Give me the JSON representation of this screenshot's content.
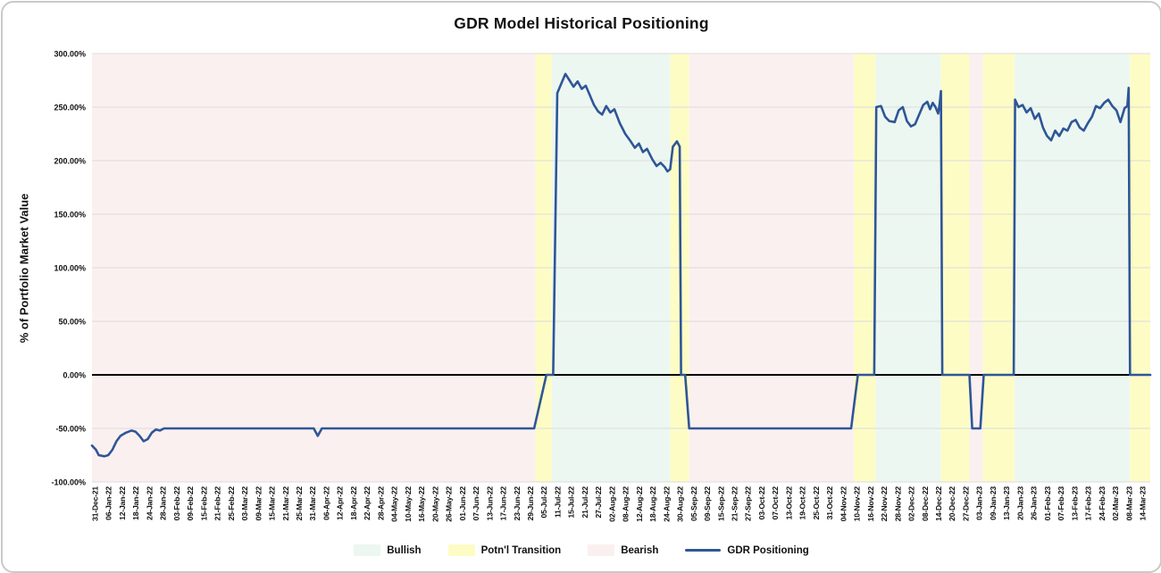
{
  "title": "GDR Model Historical Positioning",
  "y_axis_title": "% of Portfolio Market Value",
  "legend": {
    "items": [
      {
        "label": "Bullish",
        "swatch": "bullish",
        "kind": "box"
      },
      {
        "label": "Potn'l Transition",
        "swatch": "transition",
        "kind": "box"
      },
      {
        "label": "Bearish",
        "swatch": "bearish",
        "kind": "box"
      },
      {
        "label": "GDR Positioning",
        "swatch": "line",
        "kind": "line"
      }
    ]
  },
  "chart_data": {
    "type": "line",
    "title": "GDR Model Historical Positioning",
    "xlabel": "",
    "ylabel": "% of Portfolio Market Value",
    "ylim": [
      -100,
      300
    ],
    "ytick_step": 50,
    "ytick_format": "0.00%",
    "grid": "horizontal",
    "legend_position": "bottom",
    "colors": {
      "bullish": "#edf7f1",
      "transition": "#fdfcc5",
      "bearish": "#fbf0f0",
      "line": "#2e5697",
      "grid": "#dcdcdc",
      "zero_axis": "#000000"
    },
    "categories": [
      "31-Dec-21",
      "06-Jan-22",
      "12-Jan-22",
      "18-Jan-22",
      "24-Jan-22",
      "28-Jan-22",
      "03-Feb-22",
      "09-Feb-22",
      "15-Feb-22",
      "21-Feb-22",
      "25-Feb-22",
      "03-Mar-22",
      "09-Mar-22",
      "15-Mar-22",
      "21-Mar-22",
      "25-Mar-22",
      "31-Mar-22",
      "06-Apr-22",
      "12-Apr-22",
      "18-Apr-22",
      "22-Apr-22",
      "28-Apr-22",
      "04-May-22",
      "10-May-22",
      "16-May-22",
      "20-May-22",
      "26-May-22",
      "01-Jun-22",
      "07-Jun-22",
      "13-Jun-22",
      "17-Jun-22",
      "23-Jun-22",
      "29-Jun-22",
      "05-Jul-22",
      "11-Jul-22",
      "15-Jul-22",
      "21-Jul-22",
      "27-Jul-22",
      "02-Aug-22",
      "08-Aug-22",
      "12-Aug-22",
      "18-Aug-22",
      "24-Aug-22",
      "30-Aug-22",
      "05-Sep-22",
      "09-Sep-22",
      "15-Sep-22",
      "21-Sep-22",
      "27-Sep-22",
      "03-Oct-22",
      "07-Oct-22",
      "13-Oct-22",
      "19-Oct-22",
      "25-Oct-22",
      "31-Oct-22",
      "04-Nov-22",
      "10-Nov-22",
      "16-Nov-22",
      "22-Nov-22",
      "28-Nov-22",
      "02-Dec-22",
      "08-Dec-22",
      "14-Dec-22",
      "20-Dec-22",
      "27-Dec-22",
      "03-Jan-23",
      "09-Jan-23",
      "13-Jan-23",
      "20-Jan-23",
      "26-Jan-23",
      "01-Feb-23",
      "07-Feb-23",
      "13-Feb-23",
      "17-Feb-23",
      "24-Feb-23",
      "02-Mar-23",
      "08-Mar-23",
      "14-Mar-23"
    ],
    "regimes": [
      {
        "state": "bearish",
        "from": -0.3,
        "to": 32.4
      },
      {
        "state": "transition",
        "from": 32.4,
        "to": 33.6
      },
      {
        "state": "bullish",
        "from": 33.6,
        "to": 42.3
      },
      {
        "state": "transition",
        "from": 42.3,
        "to": 43.7
      },
      {
        "state": "bearish",
        "from": 43.7,
        "to": 55.8
      },
      {
        "state": "transition",
        "from": 55.8,
        "to": 57.4
      },
      {
        "state": "bullish",
        "from": 57.4,
        "to": 62.2
      },
      {
        "state": "transition",
        "from": 62.2,
        "to": 64.3
      },
      {
        "state": "bearish",
        "from": 64.3,
        "to": 65.3
      },
      {
        "state": "transition",
        "from": 65.3,
        "to": 67.6
      },
      {
        "state": "bullish",
        "from": 67.6,
        "to": 76.1
      },
      {
        "state": "transition",
        "from": 76.1,
        "to": 77.9
      }
    ],
    "series": [
      {
        "name": "GDR Positioning",
        "color": "#2e5697",
        "points": [
          [
            -0.2,
            -66
          ],
          [
            0.1,
            -70
          ],
          [
            0.3,
            -75
          ],
          [
            0.7,
            -76
          ],
          [
            1.0,
            -75
          ],
          [
            1.3,
            -70
          ],
          [
            1.6,
            -62
          ],
          [
            1.9,
            -57
          ],
          [
            2.3,
            -54
          ],
          [
            2.7,
            -52
          ],
          [
            3.0,
            -53
          ],
          [
            3.3,
            -57
          ],
          [
            3.6,
            -62
          ],
          [
            3.9,
            -60
          ],
          [
            4.2,
            -54
          ],
          [
            4.5,
            -51
          ],
          [
            4.8,
            -52
          ],
          [
            5.1,
            -50
          ],
          [
            16.1,
            -50
          ],
          [
            16.4,
            -57
          ],
          [
            16.7,
            -50
          ],
          [
            32.3,
            -50
          ],
          [
            33.2,
            0
          ],
          [
            33.7,
            0
          ],
          [
            34.0,
            263
          ],
          [
            34.3,
            272
          ],
          [
            34.6,
            281
          ],
          [
            34.9,
            275
          ],
          [
            35.2,
            269
          ],
          [
            35.5,
            274
          ],
          [
            35.8,
            267
          ],
          [
            36.1,
            270
          ],
          [
            36.4,
            261
          ],
          [
            36.7,
            252
          ],
          [
            37.0,
            246
          ],
          [
            37.3,
            243
          ],
          [
            37.6,
            251
          ],
          [
            37.9,
            245
          ],
          [
            38.2,
            248
          ],
          [
            38.6,
            235
          ],
          [
            39.0,
            225
          ],
          [
            39.4,
            218
          ],
          [
            39.7,
            212
          ],
          [
            40.0,
            216
          ],
          [
            40.3,
            208
          ],
          [
            40.6,
            211
          ],
          [
            41.0,
            201
          ],
          [
            41.3,
            195
          ],
          [
            41.6,
            198
          ],
          [
            41.9,
            194
          ],
          [
            42.1,
            190
          ],
          [
            42.3,
            192
          ],
          [
            42.5,
            213
          ],
          [
            42.8,
            218
          ],
          [
            43.0,
            213
          ],
          [
            43.1,
            0
          ],
          [
            43.4,
            0
          ],
          [
            43.7,
            -50
          ],
          [
            55.6,
            -50
          ],
          [
            56.1,
            0
          ],
          [
            57.3,
            0
          ],
          [
            57.45,
            250
          ],
          [
            57.8,
            251
          ],
          [
            58.1,
            241
          ],
          [
            58.4,
            237
          ],
          [
            58.8,
            236
          ],
          [
            59.1,
            247
          ],
          [
            59.4,
            250
          ],
          [
            59.7,
            237
          ],
          [
            60.0,
            232
          ],
          [
            60.3,
            234
          ],
          [
            60.6,
            243
          ],
          [
            60.9,
            252
          ],
          [
            61.2,
            255
          ],
          [
            61.4,
            248
          ],
          [
            61.6,
            254
          ],
          [
            61.8,
            250
          ],
          [
            62.0,
            244
          ],
          [
            62.1,
            252
          ],
          [
            62.2,
            265
          ],
          [
            62.3,
            0
          ],
          [
            64.3,
            0
          ],
          [
            64.5,
            -50
          ],
          [
            65.1,
            -50
          ],
          [
            65.35,
            0
          ],
          [
            67.55,
            0
          ],
          [
            67.65,
            257
          ],
          [
            67.9,
            250
          ],
          [
            68.2,
            252
          ],
          [
            68.5,
            245
          ],
          [
            68.8,
            249
          ],
          [
            69.1,
            239
          ],
          [
            69.4,
            244
          ],
          [
            69.7,
            231
          ],
          [
            70.0,
            223
          ],
          [
            70.3,
            219
          ],
          [
            70.6,
            228
          ],
          [
            70.9,
            223
          ],
          [
            71.2,
            230
          ],
          [
            71.5,
            228
          ],
          [
            71.8,
            236
          ],
          [
            72.1,
            238
          ],
          [
            72.4,
            231
          ],
          [
            72.7,
            228
          ],
          [
            73.0,
            235
          ],
          [
            73.3,
            241
          ],
          [
            73.6,
            251
          ],
          [
            73.9,
            249
          ],
          [
            74.2,
            254
          ],
          [
            74.5,
            257
          ],
          [
            74.8,
            251
          ],
          [
            75.1,
            247
          ],
          [
            75.4,
            236
          ],
          [
            75.7,
            249
          ],
          [
            75.9,
            251
          ],
          [
            76.0,
            268
          ],
          [
            76.1,
            0
          ],
          [
            77.6,
            0
          ]
        ]
      }
    ]
  }
}
